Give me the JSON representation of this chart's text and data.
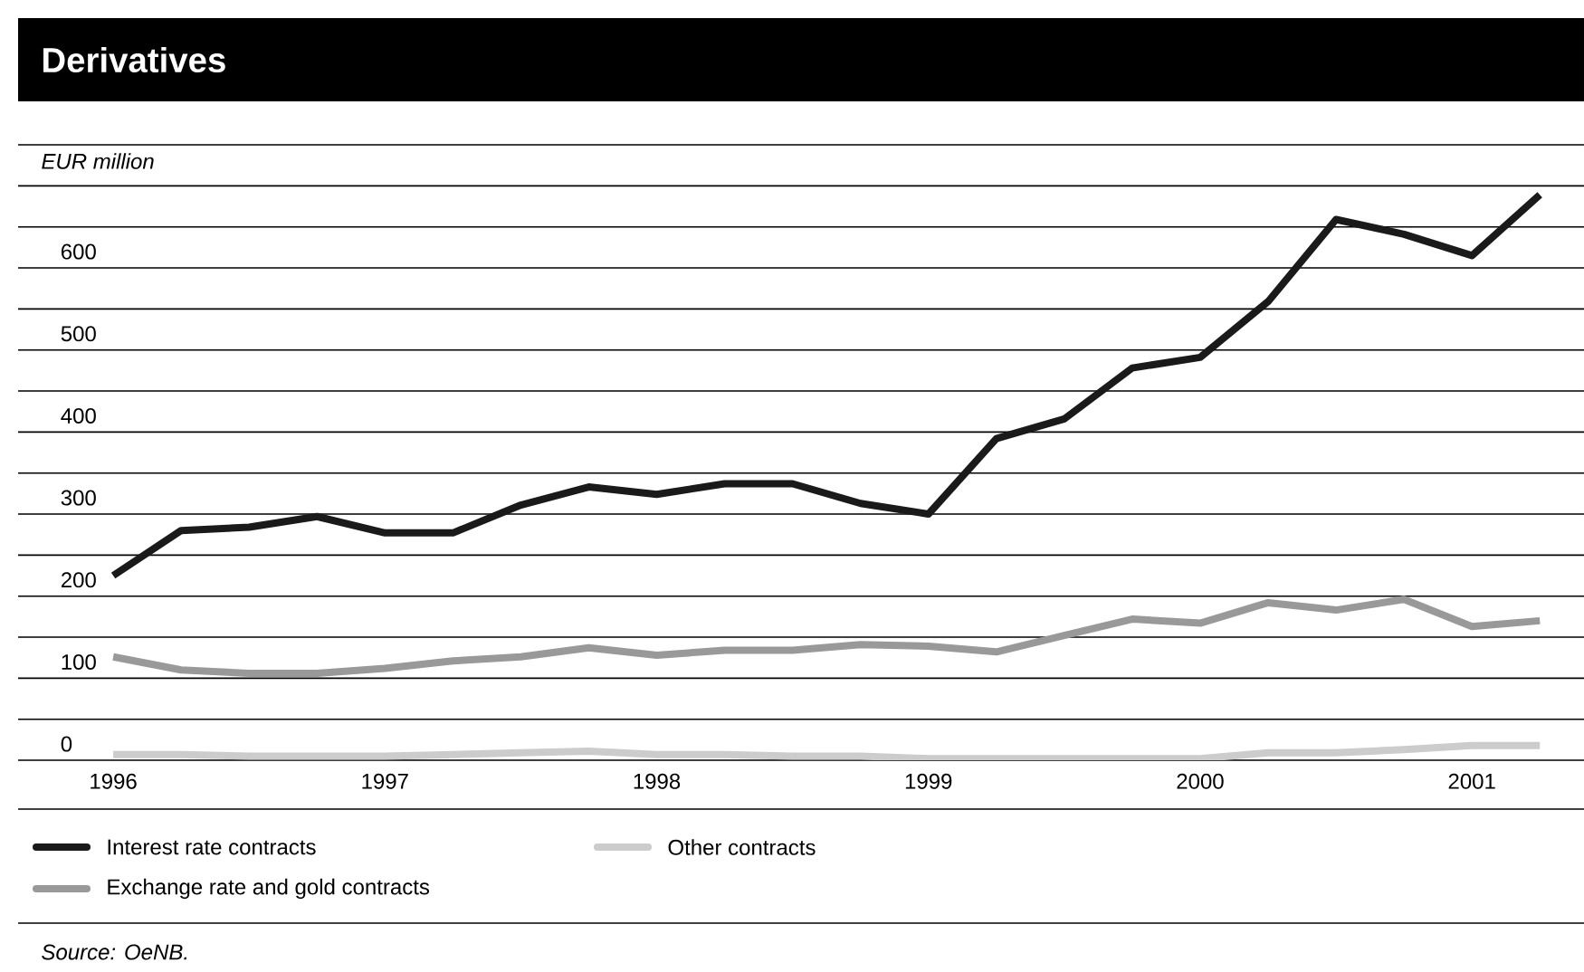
{
  "chart_data": {
    "type": "line",
    "title": "Derivatives",
    "ylabel": "EUR million",
    "categories": [
      "1996",
      null,
      null,
      null,
      "1997",
      null,
      null,
      null,
      "1998",
      null,
      null,
      null,
      "1999",
      null,
      null,
      null,
      "2000",
      null,
      null,
      null,
      "2001",
      null
    ],
    "series": [
      {
        "name": "Interest rate contracts",
        "color": "#1a1a1a",
        "values": [
          225,
          280,
          284,
          297,
          277,
          277,
          311,
          333,
          324,
          337,
          337,
          313,
          300,
          392,
          416,
          478,
          491,
          559,
          659,
          641,
          615,
          689
        ]
      },
      {
        "name": "Exchange rate and gold contracts",
        "color": "#999999",
        "values": [
          126,
          110,
          106,
          106,
          112,
          121,
          126,
          137,
          128,
          134,
          134,
          141,
          139,
          132,
          152,
          172,
          167,
          192,
          183,
          196,
          163,
          170
        ]
      },
      {
        "name": "Other contracts",
        "color": "#cccccc",
        "values": [
          7,
          7,
          5,
          5,
          5,
          7,
          9,
          11,
          7,
          7,
          5,
          5,
          2,
          2,
          2,
          2,
          2,
          9,
          9,
          13,
          18,
          18
        ]
      }
    ],
    "ylim": [
      0,
      750
    ],
    "yticks": [
      0,
      {
        "value": 50,
        "label": null
      },
      100,
      {
        "value": 150,
        "label": null
      },
      200,
      {
        "value": 250,
        "label": null
      },
      300,
      {
        "value": 350,
        "label": null
      },
      400,
      {
        "value": 450,
        "label": null
      },
      500,
      {
        "value": 550,
        "label": null
      },
      600,
      {
        "value": 650,
        "label": null
      },
      {
        "value": 700,
        "label": null
      },
      {
        "value": 750,
        "label": null
      }
    ],
    "grid": "y",
    "legend": "bottom",
    "marker": "none",
    "line_style": "solid",
    "annotations": [
      "Source: OeNB."
    ]
  }
}
